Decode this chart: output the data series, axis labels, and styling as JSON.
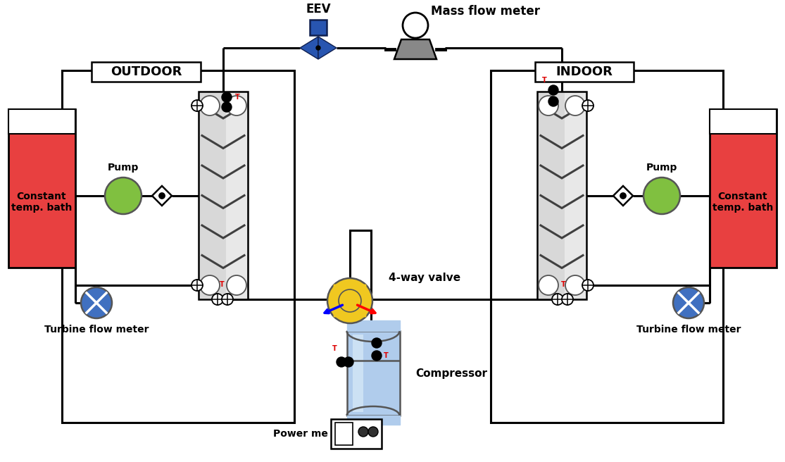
{
  "bg": "#ffffff",
  "black": "#000000",
  "dark_gray": "#555555",
  "silver_hx": "#c8c8c8",
  "chevron_color": "#404040",
  "pump_green": "#80c040",
  "turbine_blue": "#4070c0",
  "bath_red": "#e84040",
  "bath_white": "#ffffff",
  "comp_blue_light": "#b0ccec",
  "comp_blue_mid": "#7aaad0",
  "comp_blue_dark": "#4488b8",
  "eev_blue": "#2855b0",
  "fourway_yellow": "#f0c820",
  "sensor_black": "#111111",
  "red_T": "#dd0000",
  "outdoor_label": "OUTDOOR",
  "indoor_label": "INDOOR",
  "bath_label": "Constant\ntemp. bath",
  "pump_label": "Pump",
  "turb_left_label": "Turbine flow meter",
  "turb_right_label": "Turbine flow meter",
  "eev_label": "EEV",
  "mfm_label": "Mass flow meter",
  "fourway_label": "4-way valve",
  "comp_label": "Compressor",
  "power_label": "Power me"
}
